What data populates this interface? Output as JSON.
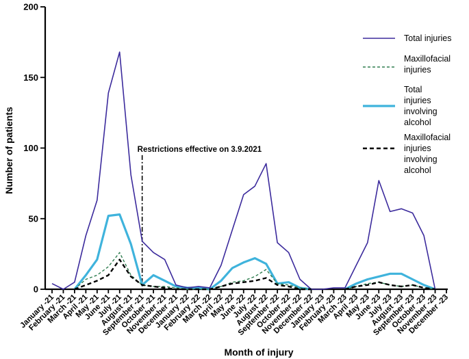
{
  "chart_data": {
    "type": "line",
    "title": "",
    "xlabel": "Month of injury",
    "ylabel": "Number of patients",
    "ylim": [
      0,
      200
    ],
    "yticks": [
      0,
      50,
      100,
      150,
      200
    ],
    "categories": [
      "January -21",
      "February -21",
      "March -21",
      "April -21",
      "May -21",
      "June -21",
      "July -21",
      "August -21",
      "September -21",
      "October -21",
      "November -21",
      "December -21",
      "January -22",
      "February -22",
      "March -22",
      "April -22",
      "May -22",
      "June -22",
      "July -22",
      "August -22",
      "September -22",
      "October -22",
      "November -22",
      "December -22",
      "January -23",
      "February -23",
      "March -23",
      "April -23",
      "May -23",
      "June -23",
      "July -23",
      "August -23",
      "September -23",
      "October -23",
      "November -23",
      "December -23"
    ],
    "series": [
      {
        "name": "Total injuries",
        "color": "#3b2a9c",
        "style": "solid",
        "values": [
          4,
          0,
          5,
          38,
          63,
          139,
          168,
          81,
          34,
          26,
          21,
          3,
          1,
          2,
          1,
          17,
          42,
          67,
          73,
          89,
          33,
          26,
          7,
          0,
          0,
          1,
          1,
          17,
          33,
          77,
          55,
          57,
          54,
          38,
          0,
          null
        ]
      },
      {
        "name": "Maxillofacial injuries",
        "color": "#2e7d4f",
        "style": "dashed",
        "values": [
          null,
          null,
          0,
          7,
          10,
          16,
          26,
          10,
          3,
          2,
          2,
          1,
          0,
          0,
          0,
          2,
          5,
          6,
          9,
          14,
          4,
          3,
          1,
          0,
          null,
          null,
          0,
          2,
          4,
          5,
          3,
          2,
          3,
          1,
          0,
          null
        ]
      },
      {
        "name": "Total injuries involving alcohol",
        "color": "#3fb3dc",
        "style": "thick",
        "values": [
          null,
          null,
          0,
          10,
          21,
          52,
          53,
          32,
          3,
          10,
          6,
          2,
          1,
          1,
          0,
          6,
          15,
          19,
          22,
          18,
          4,
          5,
          1,
          0,
          null,
          null,
          0,
          4,
          7,
          9,
          11,
          11,
          7,
          3,
          0,
          null
        ]
      },
      {
        "name": "Maxillofacial injuries involving alcohol",
        "color": "#000000",
        "style": "bold-dash",
        "values": [
          null,
          null,
          0,
          3,
          6,
          10,
          21,
          9,
          3,
          2,
          1,
          0,
          0,
          0,
          0,
          2,
          4,
          5,
          6,
          8,
          3,
          2,
          0,
          0,
          null,
          null,
          0,
          2,
          3,
          5,
          3,
          2,
          3,
          1,
          0,
          null
        ]
      }
    ],
    "annotations": [
      {
        "text": "Restrictions effective on 3.9.2021",
        "at_category": "September -21",
        "from_y": 95,
        "to_y": 0
      }
    ],
    "legend_placement": "top-right",
    "legend_labels": [
      [
        "Total injuries"
      ],
      [
        "Maxillofacial",
        "injuries"
      ],
      [
        "Total",
        "injuries",
        "involving",
        "alcohol"
      ],
      [
        "Maxillofacial",
        "injuries",
        "involving",
        "alcohol"
      ]
    ]
  }
}
